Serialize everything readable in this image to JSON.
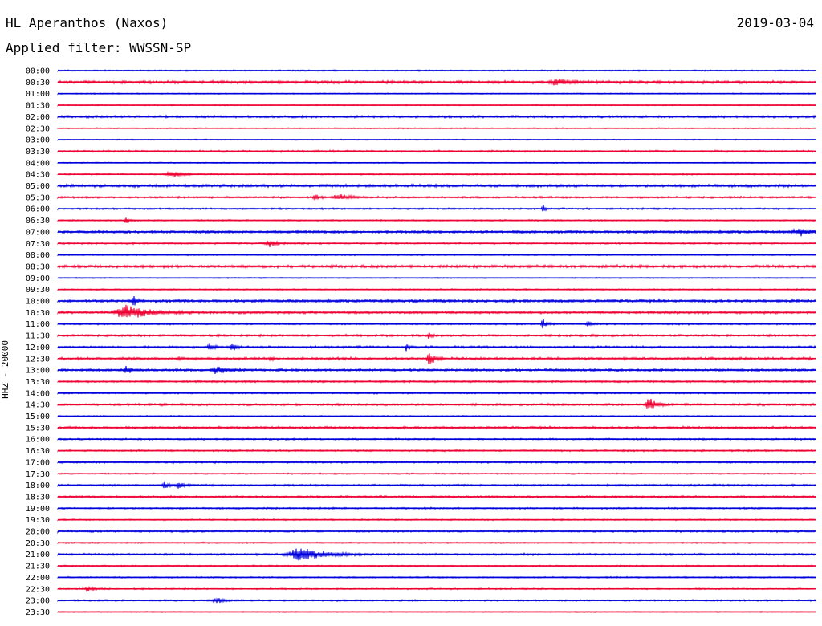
{
  "header": {
    "station": "HL Aperanthos (Naxos)",
    "date": "2019-03-04",
    "filter": "Applied filter: WWSSN-SP",
    "channel": "HHZ - 20000"
  },
  "colors": {
    "blue": "#0000dd",
    "red": "#ee0033"
  },
  "chart_data": {
    "type": "line",
    "title": "HL Aperanthos (Naxos)",
    "subtitle": "Applied filter: WWSSN-SP",
    "ylabel": "HHZ - 20000",
    "xlabel": "",
    "grid": false,
    "y_categories": [
      "00:00",
      "00:30",
      "01:00",
      "01:30",
      "02:00",
      "02:30",
      "03:00",
      "03:30",
      "04:00",
      "04:30",
      "05:00",
      "05:30",
      "06:00",
      "06:30",
      "07:00",
      "07:30",
      "08:00",
      "08:30",
      "09:00",
      "09:30",
      "10:00",
      "10:30",
      "11:00",
      "11:30",
      "12:00",
      "12:30",
      "13:00",
      "13:30",
      "14:00",
      "14:30",
      "15:00",
      "15:30",
      "16:00",
      "16:30",
      "17:00",
      "17:30",
      "18:00",
      "18:30",
      "19:00",
      "19:30",
      "20:00",
      "20:30",
      "21:00",
      "21:30",
      "22:00",
      "22:30",
      "23:00",
      "23:30"
    ],
    "series_color_pattern": [
      "blue",
      "red"
    ],
    "trace_noise": [
      1.0,
      2.0,
      0.8,
      0.8,
      1.6,
      0.8,
      0.8,
      1.4,
      0.8,
      1.0,
      2.0,
      1.4,
      1.2,
      1.0,
      2.0,
      1.2,
      1.0,
      2.0,
      0.8,
      1.0,
      2.2,
      1.8,
      1.2,
      1.6,
      1.6,
      1.8,
      1.8,
      1.4,
      1.2,
      1.6,
      1.0,
      1.6,
      1.2,
      1.2,
      1.4,
      1.0,
      1.4,
      1.4,
      1.2,
      1.0,
      1.4,
      1.0,
      1.4,
      1.0,
      1.0,
      1.0,
      1.2,
      0.8
    ],
    "events": [
      {
        "trace": 1,
        "x": 0.66,
        "amp": 5,
        "width": 0.02
      },
      {
        "trace": 9,
        "x": 0.15,
        "amp": 4,
        "width": 0.02
      },
      {
        "trace": 11,
        "x": 0.34,
        "amp": 6,
        "width": 0.006
      },
      {
        "trace": 11,
        "x": 0.37,
        "amp": 4,
        "width": 0.02
      },
      {
        "trace": 12,
        "x": 0.64,
        "amp": 6,
        "width": 0.004
      },
      {
        "trace": 13,
        "x": 0.09,
        "amp": 5,
        "width": 0.006
      },
      {
        "trace": 14,
        "x": 0.98,
        "amp": 4,
        "width": 0.025
      },
      {
        "trace": 15,
        "x": 0.28,
        "amp": 4,
        "width": 0.015
      },
      {
        "trace": 20,
        "x": 0.1,
        "amp": 8,
        "width": 0.005
      },
      {
        "trace": 21,
        "x": 0.09,
        "amp": 10,
        "width": 0.035
      },
      {
        "trace": 22,
        "x": 0.64,
        "amp": 9,
        "width": 0.006
      },
      {
        "trace": 22,
        "x": 0.7,
        "amp": 4,
        "width": 0.006
      },
      {
        "trace": 23,
        "x": 0.49,
        "amp": 6,
        "width": 0.004
      },
      {
        "trace": 24,
        "x": 0.2,
        "amp": 7,
        "width": 0.006
      },
      {
        "trace": 24,
        "x": 0.23,
        "amp": 7,
        "width": 0.006
      },
      {
        "trace": 24,
        "x": 0.46,
        "amp": 7,
        "width": 0.003
      },
      {
        "trace": 25,
        "x": 0.49,
        "amp": 9,
        "width": 0.008
      },
      {
        "trace": 25,
        "x": 0.16,
        "amp": 4,
        "width": 0.004
      },
      {
        "trace": 25,
        "x": 0.28,
        "amp": 4,
        "width": 0.004
      },
      {
        "trace": 26,
        "x": 0.09,
        "amp": 6,
        "width": 0.008
      },
      {
        "trace": 26,
        "x": 0.21,
        "amp": 5,
        "width": 0.02
      },
      {
        "trace": 29,
        "x": 0.78,
        "amp": 10,
        "width": 0.012
      },
      {
        "trace": 36,
        "x": 0.14,
        "amp": 8,
        "width": 0.006
      },
      {
        "trace": 36,
        "x": 0.16,
        "amp": 5,
        "width": 0.008
      },
      {
        "trace": 42,
        "x": 0.32,
        "amp": 9,
        "width": 0.04
      },
      {
        "trace": 45,
        "x": 0.04,
        "amp": 4,
        "width": 0.01
      },
      {
        "trace": 46,
        "x": 0.21,
        "amp": 4,
        "width": 0.015
      }
    ]
  }
}
